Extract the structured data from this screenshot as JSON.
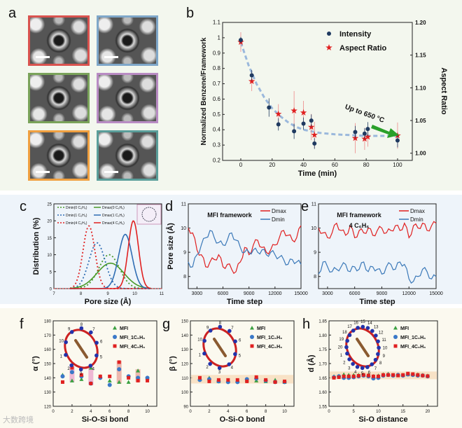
{
  "panel_labels": [
    "a",
    "b",
    "c",
    "d",
    "e",
    "f",
    "g",
    "h"
  ],
  "panel_a": {
    "tiles": [
      {
        "border": "#d9534f",
        "scale_bar": true
      },
      {
        "border": "#7fa7c9",
        "scale_bar": true
      },
      {
        "border": "#7aa35a",
        "scale_bar": false
      },
      {
        "border": "#b98cc4",
        "scale_bar": false
      },
      {
        "border": "#f0a040",
        "scale_bar": true
      },
      {
        "border": "#5a9e9a",
        "scale_bar": true
      }
    ]
  },
  "watermark": "大数跨境",
  "chart_data": [
    {
      "id": "b",
      "type": "scatter",
      "xlabel": "Time (min)",
      "ylabel": "Normalized Benzene/Framework",
      "y2label": "Aspect Ratio",
      "xlim": [
        -11.6,
        109.4
      ],
      "ylim": [
        0.2,
        1.1
      ],
      "y2lim": [
        0.989,
        1.2
      ],
      "xticks": [
        0,
        20,
        40,
        60,
        80,
        100
      ],
      "yticks": [
        0.2,
        0.3,
        0.4,
        0.5,
        0.6,
        0.7,
        0.8,
        0.9,
        1.0,
        1.1
      ],
      "y2ticks": [
        1.0,
        1.05,
        1.1,
        1.15,
        1.2
      ],
      "y2tick_labels": [
        "1.00",
        "1.05",
        "1.10",
        "1.15",
        "1.20"
      ],
      "annotation": "Up to 650 °C",
      "series": [
        {
          "name": "Intensity",
          "color": "#1f3a60",
          "marker": "circle",
          "axis": "left",
          "x": [
            0,
            7,
            18,
            24,
            34,
            40,
            45,
            47,
            73,
            79,
            81,
            100
          ],
          "y": [
            0.985,
            0.755,
            0.545,
            0.435,
            0.39,
            0.44,
            0.46,
            0.31,
            0.385,
            0.375,
            0.405,
            0.33
          ],
          "err": [
            0.02,
            0.035,
            0.06,
            0.04,
            0.05,
            0.04,
            0.04,
            0.035,
            0.04,
            0.035,
            0.045,
            0.045
          ]
        },
        {
          "name": "Aspect Ratio",
          "color": "#e02020",
          "marker": "star",
          "axis": "right",
          "x": [
            0,
            7,
            24,
            34,
            40,
            45,
            47,
            73,
            79,
            81,
            100
          ],
          "y": [
            1.17,
            1.11,
            1.06,
            1.065,
            1.062,
            1.04,
            1.028,
            1.023,
            1.022,
            1.025,
            1.027
          ],
          "err": [
            0.015,
            0.015,
            0.015,
            0.03,
            0.018,
            0.02,
            0.02,
            0.023,
            0.017,
            0.015,
            0.02
          ]
        },
        {
          "name": "fit",
          "color": "#9ab8dc",
          "style": "dashed",
          "axis": "left",
          "x": [
            0,
            5,
            10,
            15,
            20,
            25,
            30,
            35,
            40,
            45,
            50,
            60,
            70,
            80,
            90,
            100
          ],
          "y": [
            0.97,
            0.82,
            0.7,
            0.61,
            0.54,
            0.49,
            0.45,
            0.42,
            0.4,
            0.39,
            0.38,
            0.37,
            0.365,
            0.36,
            0.36,
            0.36
          ]
        }
      ]
    },
    {
      "id": "c",
      "type": "line",
      "xlabel": "Pore size (Å)",
      "ylabel": "Distribution (%)",
      "xlim": [
        7,
        11
      ],
      "ylim": [
        0,
        25
      ],
      "xticks": [
        7,
        8,
        9,
        10,
        11
      ],
      "yticks": [
        0,
        5,
        10,
        15,
        20,
        25
      ],
      "series": [
        {
          "name": "Dmin(0 C6H6)",
          "color": "#4a9a2a",
          "style": "dotted",
          "mean": 9.05,
          "peak": 10,
          "sigma": 0.38
        },
        {
          "name": "Dmin(1 C6H6)",
          "color": "#2f6db3",
          "style": "dotted",
          "mean": 8.6,
          "peak": 13.5,
          "sigma": 0.3
        },
        {
          "name": "Dmin(4 C6H6)",
          "color": "#e02020",
          "style": "dotted",
          "mean": 8.3,
          "peak": 18.5,
          "sigma": 0.22
        },
        {
          "name": "Dmax(0 C6H6)",
          "color": "#4a9a2a",
          "style": "solid",
          "mean": 9.1,
          "peak": 7.5,
          "sigma": 0.5
        },
        {
          "name": "Dmax(1 C6H6)",
          "color": "#2f6db3",
          "style": "solid",
          "mean": 9.65,
          "peak": 16,
          "sigma": 0.25
        },
        {
          "name": "Dmax(4 C6H6)",
          "color": "#e02020",
          "style": "solid",
          "mean": 9.95,
          "peak": 20,
          "sigma": 0.19
        }
      ]
    },
    {
      "id": "d",
      "type": "line",
      "xlabel": "Time step",
      "ylabel": "Pore size (Å)",
      "title": "MFI framework",
      "xlim": [
        2000,
        15000
      ],
      "ylim": [
        7.5,
        11
      ],
      "xticks": [
        3000,
        6000,
        9000,
        12000,
        15000
      ],
      "yticks": [
        8,
        9,
        10,
        11
      ],
      "x": [
        2000,
        2500,
        3000,
        3500,
        4000,
        4500,
        5000,
        5500,
        6000,
        6500,
        7000,
        7500,
        8000,
        8500,
        9000,
        9500,
        10000,
        10500,
        11000,
        11500,
        12000,
        12500,
        13000,
        13500,
        14000,
        14500,
        15000
      ],
      "series": [
        {
          "name": "Dmax",
          "color": "#e02020",
          "y": [
            10.0,
            9.8,
            9.1,
            8.9,
            8.4,
            8.6,
            8.7,
            8.9,
            8.4,
            8.5,
            8.3,
            8.2,
            8.6,
            9.2,
            8.9,
            9.3,
            9.5,
            9.2,
            9.0,
            9.1,
            9.3,
            9.6,
            9.9,
            9.7,
            9.5,
            9.6,
            10.1
          ]
        },
        {
          "name": "Dmin",
          "color": "#3a78b8",
          "y": [
            8.6,
            8.4,
            8.9,
            9.3,
            9.6,
            9.9,
            9.6,
            9.4,
            9.3,
            9.5,
            9.8,
            9.5,
            9.2,
            9.0,
            9.0,
            9.1,
            9.0,
            9.1,
            8.9,
            9.0,
            8.9,
            8.8,
            8.7,
            8.5,
            8.7,
            8.6,
            8.5
          ]
        }
      ]
    },
    {
      "id": "e",
      "type": "line",
      "xlabel": "Time step",
      "ylabel": "",
      "title": "MFI framework",
      "subtitle": "4 C6H6",
      "xlim": [
        2000,
        15000
      ],
      "ylim": [
        7.5,
        11
      ],
      "xticks": [
        3000,
        6000,
        9000,
        12000,
        15000
      ],
      "yticks": [
        8,
        9,
        10,
        11
      ],
      "x": [
        2000,
        2500,
        3000,
        3500,
        4000,
        4500,
        5000,
        5500,
        6000,
        6500,
        7000,
        7500,
        8000,
        8500,
        9000,
        9500,
        10000,
        10500,
        11000,
        11500,
        12000,
        12500,
        13000,
        13500,
        14000,
        14500,
        15000
      ],
      "series": [
        {
          "name": "Dmax",
          "color": "#e02020",
          "y": [
            10.0,
            9.8,
            9.6,
            9.8,
            10.2,
            9.9,
            9.7,
            10.1,
            9.6,
            9.9,
            9.8,
            10.0,
            9.7,
            9.9,
            10.0,
            9.8,
            9.9,
            10.1,
            9.9,
            10.2,
            9.6,
            10.1,
            10.0,
            10.2,
            9.9,
            10.1,
            10.2
          ]
        },
        {
          "name": "Dmin",
          "color": "#3a78b8",
          "y": [
            8.1,
            8.6,
            8.4,
            8.2,
            8.3,
            8.4,
            8.5,
            8.2,
            8.4,
            8.3,
            8.6,
            8.2,
            8.4,
            8.3,
            8.1,
            8.4,
            8.5,
            8.3,
            8.6,
            8.5,
            7.9,
            7.8,
            8.0,
            8.3,
            8.2,
            7.9,
            8.0
          ]
        }
      ]
    },
    {
      "id": "f",
      "type": "scatter",
      "xlabel": "Si-O-Si bond",
      "ylabel": "α (°)",
      "xlim": [
        0,
        11
      ],
      "ylim": [
        120,
        180
      ],
      "xticks": [
        0,
        2,
        4,
        6,
        8,
        10
      ],
      "yticks": [
        120,
        130,
        140,
        150,
        160,
        170,
        180
      ],
      "highlight_bonds": [
        2,
        4,
        7,
        9
      ],
      "x": [
        1,
        2,
        3,
        4,
        5,
        6,
        7,
        8,
        9,
        10
      ],
      "series": [
        {
          "name": "MFI",
          "color": "#3aa040",
          "marker": "triangle",
          "y": [
            142,
            138,
            139,
            147,
            141,
            138,
            137,
            137,
            145,
            140
          ]
        },
        {
          "name": "MFI_1C6H6",
          "color": "#3a78c8",
          "marker": "circle",
          "y": [
            141,
            144,
            141,
            136,
            140,
            135,
            146,
            141,
            140,
            140
          ]
        },
        {
          "name": "MFI_4C6H6",
          "color": "#e02020",
          "marker": "square",
          "y": [
            137,
            147,
            142,
            136,
            141,
            141,
            151,
            140,
            138,
            138
          ]
        }
      ],
      "ring_labels": [
        "1",
        "2",
        "3",
        "4",
        "5",
        "6",
        "7",
        "8",
        "9",
        "10"
      ]
    },
    {
      "id": "g",
      "type": "scatter",
      "xlabel": "O-Si-O bond",
      "ylabel": "β (°)",
      "xlim": [
        0,
        11
      ],
      "ylim": [
        90,
        150
      ],
      "xticks": [
        0,
        2,
        4,
        6,
        8,
        10
      ],
      "yticks": [
        90,
        100,
        110,
        120,
        130,
        140,
        150
      ],
      "band": [
        106,
        112
      ],
      "x": [
        1,
        2,
        3,
        4,
        5,
        6,
        7,
        8,
        9,
        10
      ],
      "series": [
        {
          "name": "MFI",
          "color": "#3aa040",
          "marker": "triangle",
          "y": [
            109,
            110,
            107.5,
            107.5,
            107.5,
            108.5,
            108,
            107.5,
            108.5,
            107
          ]
        },
        {
          "name": "MFI_1C6H6",
          "color": "#3a78c8",
          "marker": "circle",
          "y": [
            108.5,
            109,
            107.5,
            107,
            107,
            109,
            109.5,
            108,
            107,
            107
          ]
        },
        {
          "name": "MFI_4C6H6",
          "color": "#e02020",
          "marker": "square",
          "y": [
            110,
            107.5,
            108.5,
            108.5,
            108.5,
            107.5,
            110.5,
            108.5,
            107,
            107.5
          ]
        }
      ],
      "ring_labels": [
        "1",
        "2",
        "3",
        "4",
        "5",
        "6",
        "7",
        "8",
        "9",
        "10"
      ]
    },
    {
      "id": "h",
      "type": "scatter",
      "xlabel": "Si-O distance",
      "ylabel": "d (Å)",
      "xlim": [
        0,
        22
      ],
      "ylim": [
        1.55,
        1.85
      ],
      "xticks": [
        0,
        5,
        10,
        15,
        20
      ],
      "yticks": [
        1.55,
        1.6,
        1.65,
        1.7,
        1.75,
        1.8,
        1.85
      ],
      "ytick_labels": [
        "1.55",
        "1.60",
        "1.65",
        "1.70",
        "1.75",
        "1.80",
        "1.85"
      ],
      "band": [
        1.645,
        1.672
      ],
      "x": [
        1,
        2,
        3,
        4,
        5,
        6,
        7,
        8,
        9,
        10,
        11,
        12,
        13,
        14,
        15,
        16,
        17,
        18,
        19,
        20
      ],
      "series": [
        {
          "name": "MFI",
          "color": "#3aa040",
          "marker": "triangle",
          "y": [
            1.655,
            1.657,
            1.662,
            1.66,
            1.66,
            1.66,
            1.661,
            1.66,
            1.656,
            1.658,
            1.662,
            1.664,
            1.66,
            1.66,
            1.66,
            1.662,
            1.662,
            1.662,
            1.66,
            1.658
          ]
        },
        {
          "name": "MFI_1C6H6",
          "color": "#3a78c8",
          "marker": "circle",
          "y": [
            1.652,
            1.655,
            1.65,
            1.65,
            1.652,
            1.655,
            1.658,
            1.655,
            1.648,
            1.65,
            1.658,
            1.66,
            1.658,
            1.66,
            1.658,
            1.662,
            1.66,
            1.658,
            1.658,
            1.655
          ]
        },
        {
          "name": "MFI_4C6H6",
          "color": "#e02020",
          "marker": "square",
          "y": [
            1.65,
            1.652,
            1.655,
            1.655,
            1.655,
            1.657,
            1.66,
            1.658,
            1.655,
            1.655,
            1.66,
            1.66,
            1.66,
            1.658,
            1.66,
            1.665,
            1.663,
            1.66,
            1.658,
            1.656
          ]
        }
      ],
      "ring_labels": [
        "1",
        "2",
        "3",
        "4",
        "5",
        "6",
        "7",
        "8",
        "9",
        "10",
        "11",
        "12",
        "13",
        "14",
        "15",
        "16",
        "17",
        "18",
        "19",
        "20"
      ]
    }
  ]
}
